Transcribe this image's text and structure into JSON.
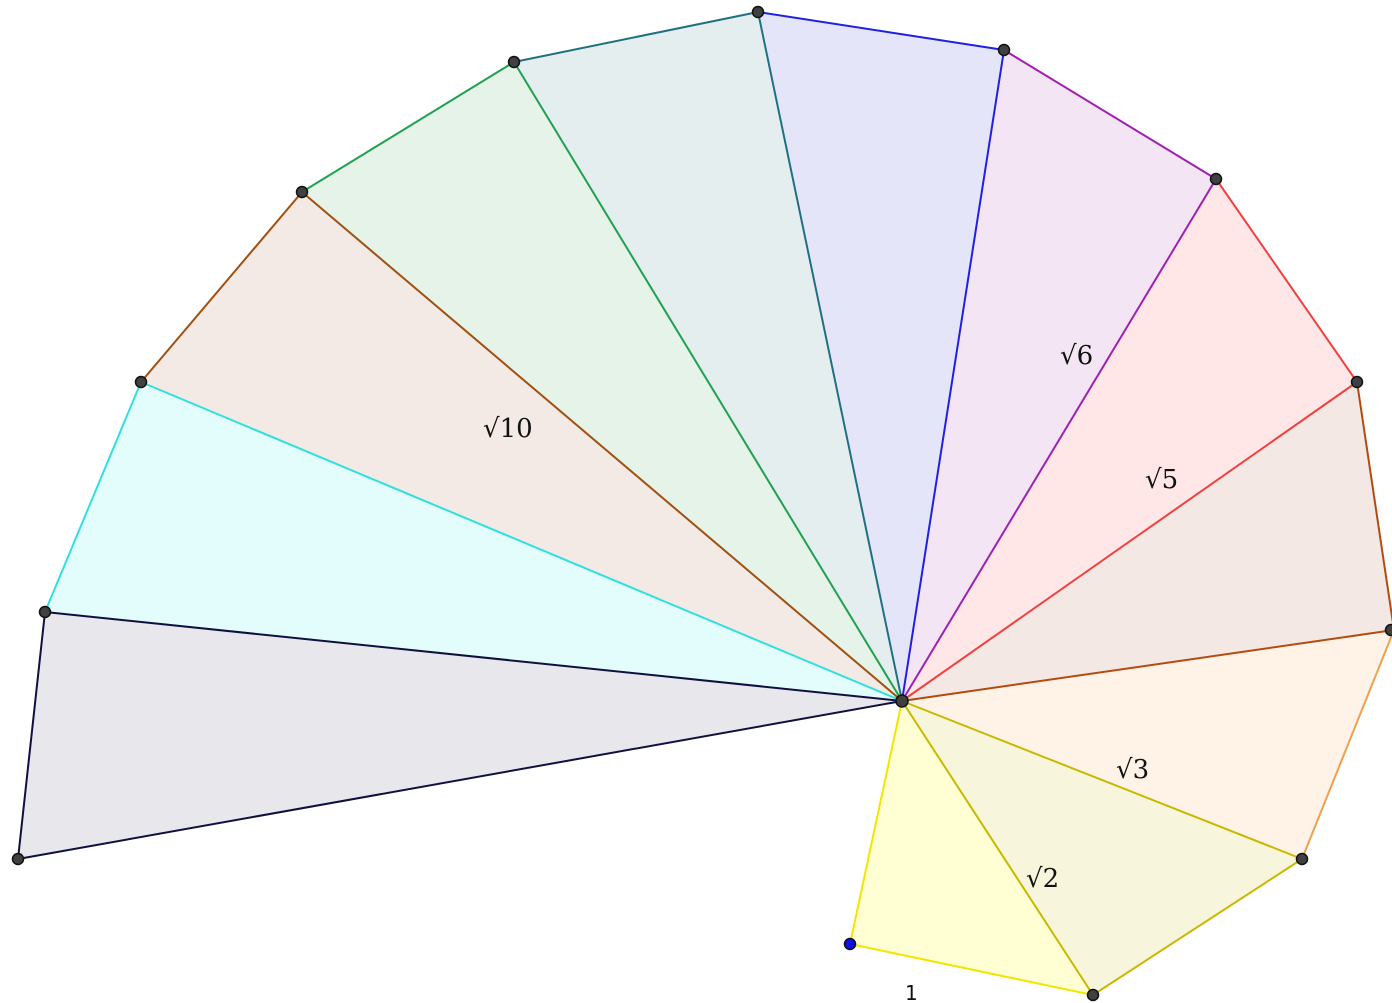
{
  "diagram": {
    "segment_labels": {
      "unit": "1",
      "sqrt2": "√2",
      "sqrt3": "√3",
      "sqrt5": "√5",
      "sqrt6": "√6",
      "sqrt10": "√10"
    },
    "colors": {
      "yellow": "#f2e600",
      "olive": "#c8b800",
      "orange": "#f0a050",
      "rust": "#b54a10",
      "red": "#f04040",
      "purple": "#a020b0",
      "blue": "#2020e0",
      "teal": "#207080",
      "green": "#20a050",
      "brown": "#a05010",
      "cyan": "#30e0e0",
      "navy": "#101040",
      "point": "#404040",
      "start_point": "#1010e0"
    }
  }
}
